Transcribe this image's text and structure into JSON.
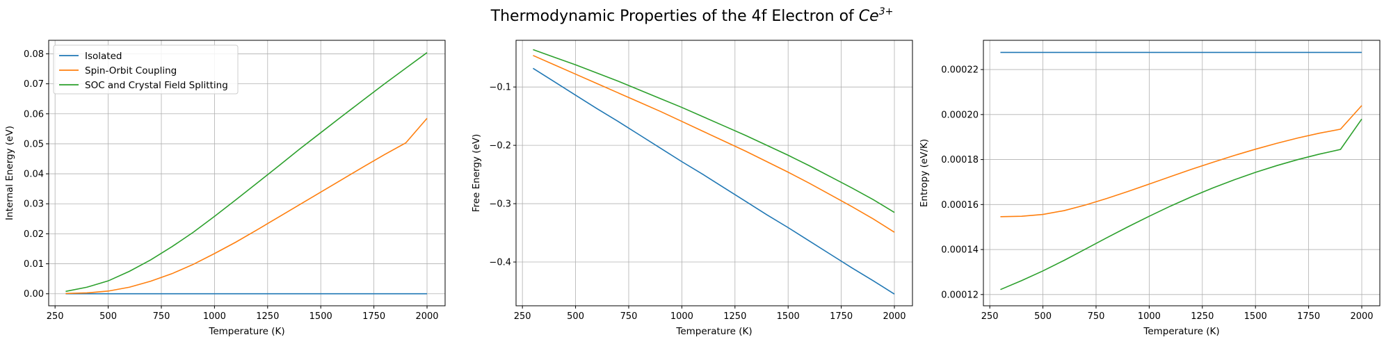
{
  "figure": {
    "title_text": "Thermodynamic Properties of the 4f Electron of ",
    "title_math": "Ce",
    "title_sup": "3+"
  },
  "colors": {
    "Isolated": "#1f77b4",
    "Spin-Orbit Coupling": "#ff7f0e",
    "SOC and Crystal Field Splitting": "#2ca02c"
  },
  "chart_data": [
    {
      "type": "line",
      "xlabel": "Temperature (K)",
      "ylabel": "Internal Energy (eV)",
      "xlim": [
        220,
        2085
      ],
      "ylim": [
        -0.004,
        0.0845
      ],
      "xticks": [
        250,
        500,
        750,
        1000,
        1250,
        1500,
        1750,
        2000
      ],
      "yticks": [
        0.0,
        0.01,
        0.02,
        0.03,
        0.04,
        0.05,
        0.06,
        0.07,
        0.08
      ],
      "ytick_labels": [
        "0.00",
        "0.01",
        "0.02",
        "0.03",
        "0.04",
        "0.05",
        "0.06",
        "0.07",
        "0.08"
      ],
      "grid": true,
      "legend": "upper-left",
      "x": [
        300,
        400,
        500,
        600,
        700,
        800,
        900,
        1000,
        1100,
        1200,
        1300,
        1400,
        1500,
        1600,
        1700,
        1800,
        1900,
        2000
      ],
      "series": [
        {
          "name": "Isolated",
          "values": [
            0,
            0,
            0,
            0,
            0,
            0,
            0,
            0,
            0,
            0,
            0,
            0,
            0,
            0,
            0,
            0,
            0,
            0
          ]
        },
        {
          "name": "Spin-Orbit Coupling",
          "values": [
            0.0001,
            0.0003,
            0.0009,
            0.0022,
            0.0042,
            0.0067,
            0.0098,
            0.0134,
            0.0172,
            0.0213,
            0.0255,
            0.0297,
            0.0339,
            0.0381,
            0.0423,
            0.0464,
            0.0503,
            0.0585
          ]
        },
        {
          "name": "SOC and Crystal Field Splitting",
          "values": [
            0.0008,
            0.0022,
            0.0043,
            0.0075,
            0.0113,
            0.0157,
            0.0205,
            0.0258,
            0.0313,
            0.0369,
            0.0425,
            0.0482,
            0.0537,
            0.0592,
            0.0646,
            0.07,
            0.0752,
            0.0804
          ]
        }
      ]
    },
    {
      "type": "line",
      "xlabel": "Temperature (K)",
      "ylabel": "Free Energy (eV)",
      "xlim": [
        220,
        2085
      ],
      "ylim": [
        -0.475,
        -0.02
      ],
      "xticks": [
        250,
        500,
        750,
        1000,
        1250,
        1500,
        1750,
        2000
      ],
      "yticks": [
        -0.4,
        -0.3,
        -0.2,
        -0.1
      ],
      "ytick_labels": [
        "−0.4",
        "−0.3",
        "−0.2",
        "−0.1"
      ],
      "grid": true,
      "x": [
        300,
        400,
        500,
        600,
        700,
        800,
        900,
        1000,
        1100,
        1200,
        1300,
        1400,
        1500,
        1600,
        1700,
        1800,
        1900,
        2000
      ],
      "series": [
        {
          "name": "Isolated",
          "values": [
            -0.068,
            -0.091,
            -0.114,
            -0.137,
            -0.159,
            -0.182,
            -0.205,
            -0.228,
            -0.25,
            -0.273,
            -0.296,
            -0.319,
            -0.341,
            -0.364,
            -0.387,
            -0.41,
            -0.432,
            -0.455
          ]
        },
        {
          "name": "Spin-Orbit Coupling",
          "values": [
            -0.046,
            -0.062,
            -0.078,
            -0.094,
            -0.11,
            -0.126,
            -0.142,
            -0.159,
            -0.176,
            -0.193,
            -0.21,
            -0.228,
            -0.246,
            -0.265,
            -0.285,
            -0.305,
            -0.326,
            -0.349
          ]
        },
        {
          "name": "SOC and Crystal Field Splitting",
          "values": [
            -0.036,
            -0.049,
            -0.062,
            -0.076,
            -0.09,
            -0.105,
            -0.12,
            -0.135,
            -0.151,
            -0.167,
            -0.183,
            -0.2,
            -0.217,
            -0.235,
            -0.254,
            -0.273,
            -0.293,
            -0.315
          ]
        }
      ]
    },
    {
      "type": "line",
      "xlabel": "Temperature (K)",
      "ylabel": "Entropy (eV/K)",
      "xlim": [
        220,
        2085
      ],
      "ylim": [
        0.000115,
        0.000233
      ],
      "xticks": [
        250,
        500,
        750,
        1000,
        1250,
        1500,
        1750,
        2000
      ],
      "yticks": [
        0.00012,
        0.00014,
        0.00016,
        0.00018,
        0.0002,
        0.00022
      ],
      "ytick_labels": [
        "0.00012",
        "0.00014",
        "0.00016",
        "0.00018",
        "0.00020",
        "0.00022"
      ],
      "grid": true,
      "x": [
        300,
        400,
        500,
        600,
        700,
        800,
        900,
        1000,
        1100,
        1200,
        1300,
        1400,
        1500,
        1600,
        1700,
        1800,
        1900,
        2000
      ],
      "series": [
        {
          "name": "Isolated",
          "values": [
            0.0002276,
            0.0002276,
            0.0002276,
            0.0002276,
            0.0002276,
            0.0002276,
            0.0002276,
            0.0002276,
            0.0002276,
            0.0002276,
            0.0002276,
            0.0002276,
            0.0002276,
            0.0002276,
            0.0002276,
            0.0002276,
            0.0002276,
            0.0002276
          ]
        },
        {
          "name": "Spin-Orbit Coupling",
          "values": [
            0.0001546,
            0.0001548,
            0.0001556,
            0.0001573,
            0.0001598,
            0.0001627,
            0.0001658,
            0.0001691,
            0.0001724,
            0.0001757,
            0.0001788,
            0.0001818,
            0.0001846,
            0.0001872,
            0.0001896,
            0.0001917,
            0.0001935,
            0.000204
          ]
        },
        {
          "name": "SOC and Crystal Field Splitting",
          "values": [
            0.0001222,
            0.0001262,
            0.0001305,
            0.0001352,
            0.0001402,
            0.0001452,
            0.0001501,
            0.0001548,
            0.0001593,
            0.0001635,
            0.0001674,
            0.000171,
            0.0001743,
            0.0001773,
            0.00018,
            0.0001824,
            0.0001845,
            0.000198
          ]
        }
      ]
    }
  ]
}
